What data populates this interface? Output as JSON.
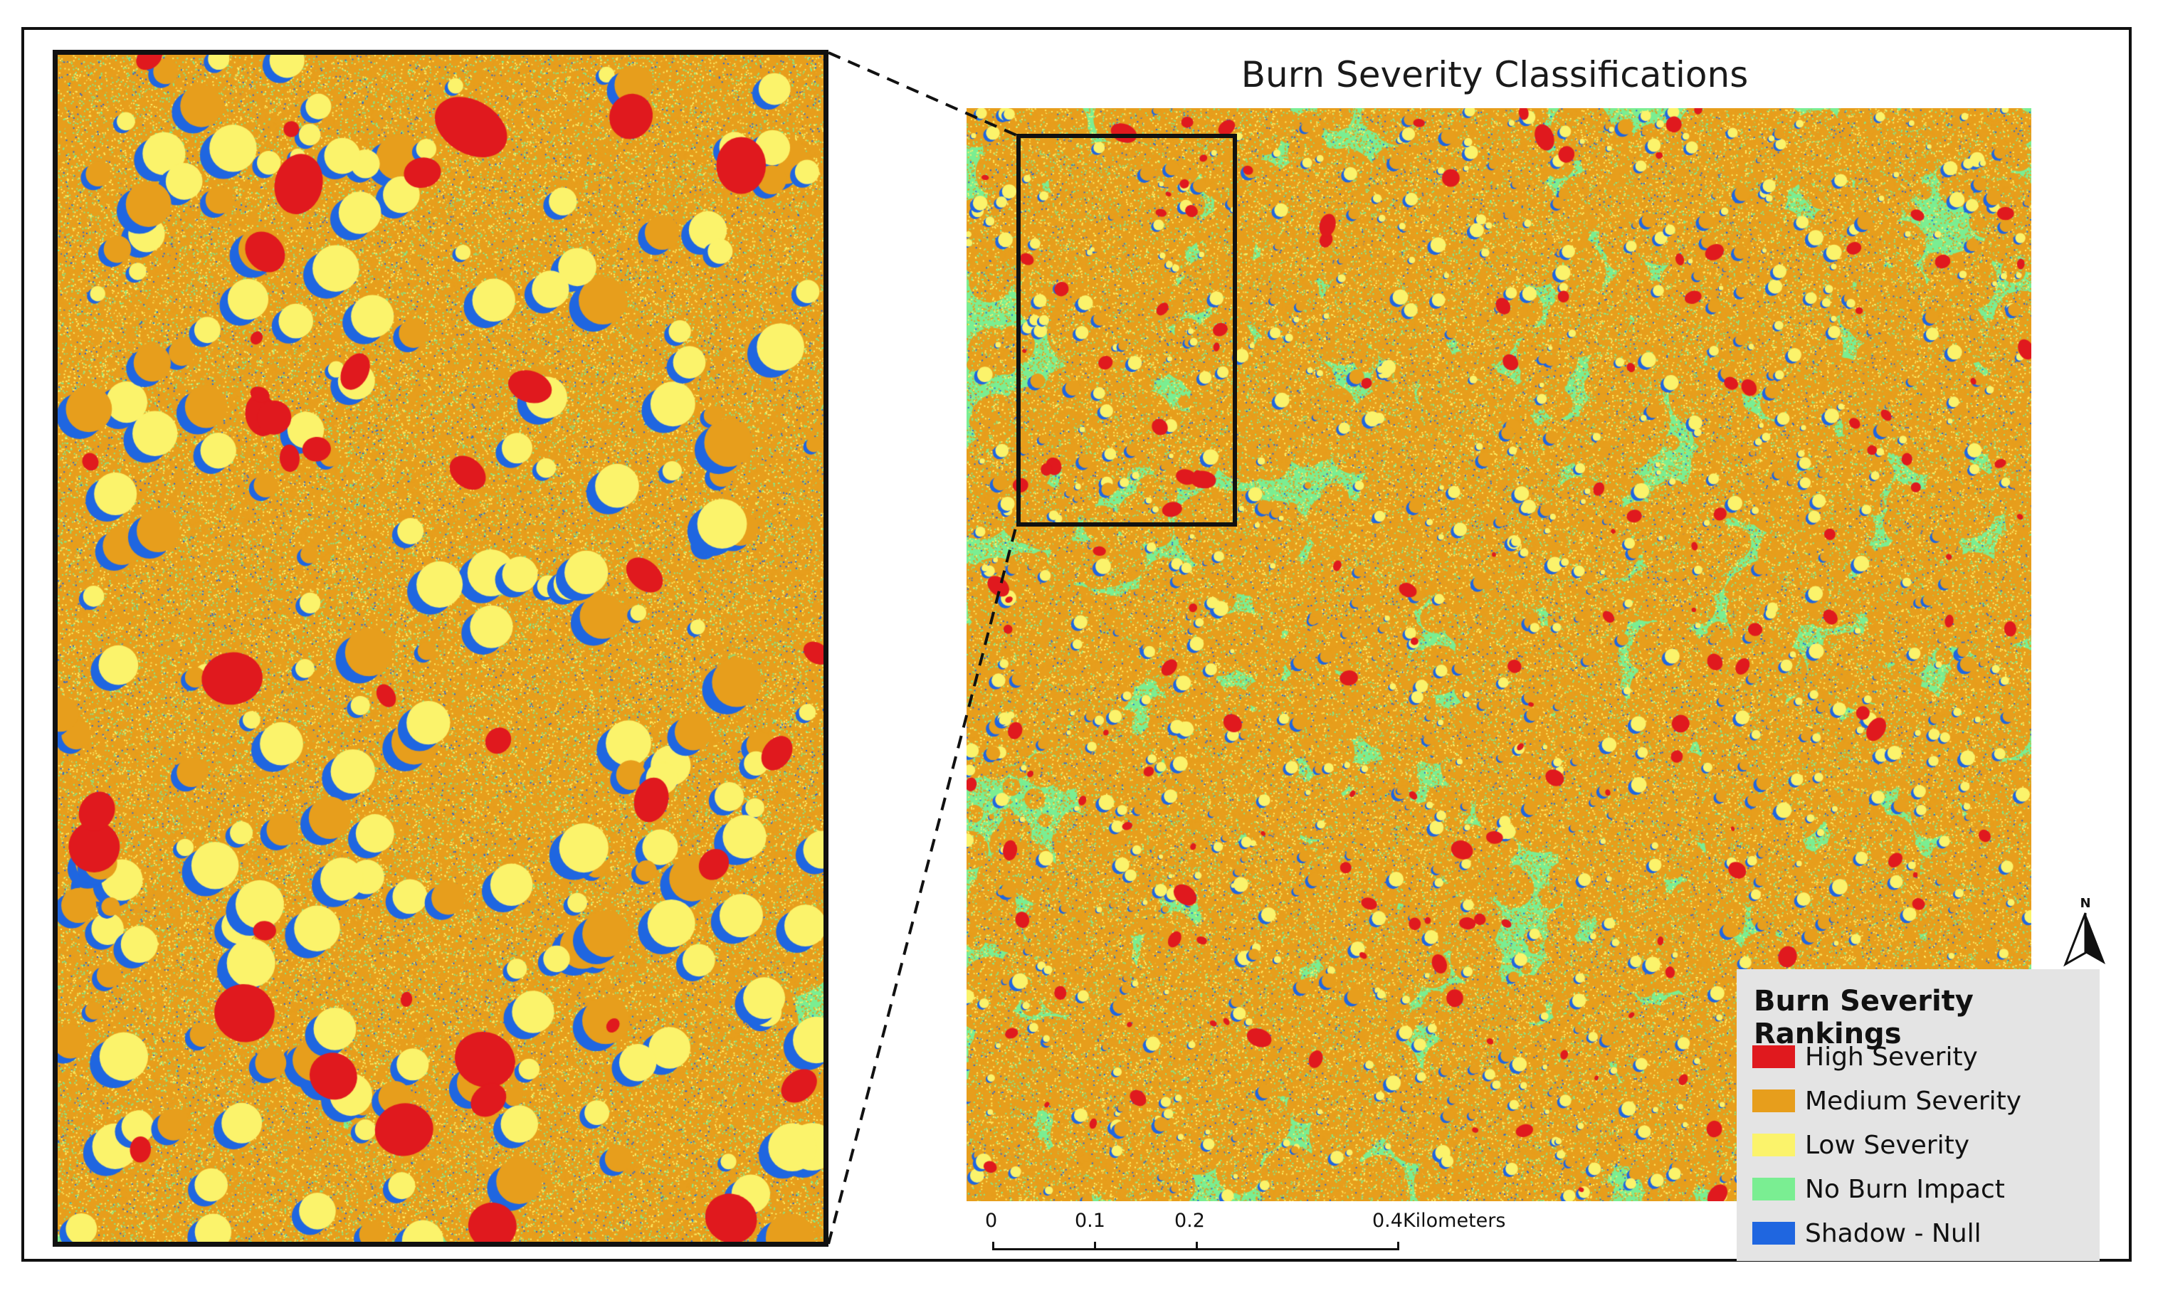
{
  "map": {
    "title": "Burn Severity Classifications"
  },
  "legend": {
    "title": "Burn Severity Rankings",
    "items": [
      {
        "label": "High Severity",
        "color": "#e0191e"
      },
      {
        "label": "Medium Severity",
        "color": "#e79e1c"
      },
      {
        "label": "Low Severity",
        "color": "#fbf36b"
      },
      {
        "label": "No Burn Impact",
        "color": "#7aee92"
      },
      {
        "label": "Shadow - Null",
        "color": "#1f66e0"
      }
    ]
  },
  "scale": {
    "ticks": [
      "0",
      "0.1",
      "0.2",
      "0.4"
    ],
    "unit": "Kilometers"
  },
  "north_arrow": {
    "label": "N",
    "icon": "north-arrow-icon"
  }
}
